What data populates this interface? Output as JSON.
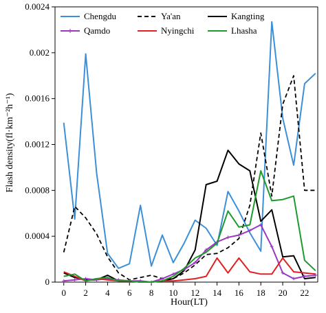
{
  "chart_data": {
    "type": "line",
    "title": "",
    "xlabel": "Hour(LT)",
    "ylabel": "Flash density(fl·km⁻²h⁻¹)",
    "xlim": [
      -0.8,
      23.2
    ],
    "ylim": [
      0,
      0.0024
    ],
    "xticks": [
      0,
      2,
      4,
      6,
      8,
      10,
      12,
      14,
      16,
      18,
      20,
      22
    ],
    "yticks": [
      0,
      0.0004,
      0.0008,
      0.0012,
      0.0016,
      0.002,
      0.0024
    ],
    "ytick_labels": [
      "0",
      "0.0004",
      "0.0008",
      "0.0012",
      "0.0016",
      "0.002",
      "0.0024"
    ],
    "grid": false,
    "legend_position": "top",
    "x": [
      0,
      1,
      2,
      3,
      4,
      5,
      6,
      7,
      8,
      9,
      10,
      11,
      12,
      13,
      14,
      15,
      16,
      17,
      18,
      19,
      20,
      21,
      22,
      23
    ],
    "series": [
      {
        "name": "Chengdu",
        "color": "#3b8fd9",
        "dash": "solid",
        "values": [
          0.00139,
          0.00055,
          0.00199,
          0.00095,
          0.00025,
          0.00012,
          0.00016,
          0.00067,
          0.00014,
          0.00041,
          0.00017,
          0.00034,
          0.00054,
          0.00047,
          0.00032,
          0.00079,
          0.00062,
          0.00043,
          0.00027,
          0.00227,
          0.00143,
          0.00102,
          0.00173,
          0.00182
        ]
      },
      {
        "name": "Ya'an",
        "color": "#000000",
        "dash": "dashed",
        "values": [
          0.00026,
          0.00066,
          0.00056,
          0.00042,
          0.00022,
          8e-05,
          2e-05,
          4e-05,
          6e-05,
          3e-05,
          3e-05,
          8e-05,
          0.00015,
          0.00024,
          0.00025,
          0.0003,
          0.00038,
          0.00067,
          0.0013,
          0.00075,
          0.00155,
          0.0018,
          0.0008,
          0.0008
        ]
      },
      {
        "name": "Kangting",
        "color": "#000000",
        "dash": "solid",
        "values": [
          8e-05,
          4e-05,
          2e-05,
          2e-05,
          6e-05,
          1e-05,
          1e-05,
          0.0,
          0.0,
          1e-05,
          3e-05,
          0.0001,
          0.00028,
          0.00085,
          0.00088,
          0.00115,
          0.00103,
          0.00097,
          0.00053,
          0.00063,
          0.00022,
          0.00023,
          3e-05,
          4e-05
        ]
      },
      {
        "name": "Qamdo",
        "color": "#9b36c2",
        "dash": "solid",
        "marker": "plus",
        "values": [
          1e-05,
          2e-05,
          3e-05,
          2e-05,
          3e-05,
          2e-05,
          1e-05,
          1e-05,
          0.0,
          3e-05,
          7e-05,
          0.00011,
          0.00017,
          0.00028,
          0.00035,
          0.00039,
          0.00041,
          0.00045,
          0.0005,
          0.00031,
          8e-05,
          3e-05,
          5e-05,
          6e-05
        ]
      },
      {
        "name": "Nyingchi",
        "color": "#e02020",
        "dash": "solid",
        "values": [
          9e-05,
          5e-05,
          1e-05,
          3e-05,
          2e-05,
          1e-05,
          1e-05,
          0.0,
          0.0,
          1e-05,
          1e-05,
          2e-05,
          3e-05,
          5e-05,
          0.00021,
          8e-05,
          0.00021,
          9e-05,
          7e-05,
          7e-05,
          0.00021,
          9e-05,
          8e-05,
          7e-05
        ]
      },
      {
        "name": "Lhasha",
        "color": "#1d9a2e",
        "dash": "solid",
        "values": [
          5e-05,
          7e-05,
          1e-05,
          3e-05,
          4e-05,
          1e-05,
          1e-05,
          0.0,
          0.0,
          1e-05,
          5e-05,
          0.00012,
          0.00021,
          0.00026,
          0.00034,
          0.00062,
          0.00048,
          0.0005,
          0.00097,
          0.00071,
          0.00072,
          0.00075,
          0.00019,
          0.0001
        ]
      }
    ]
  }
}
